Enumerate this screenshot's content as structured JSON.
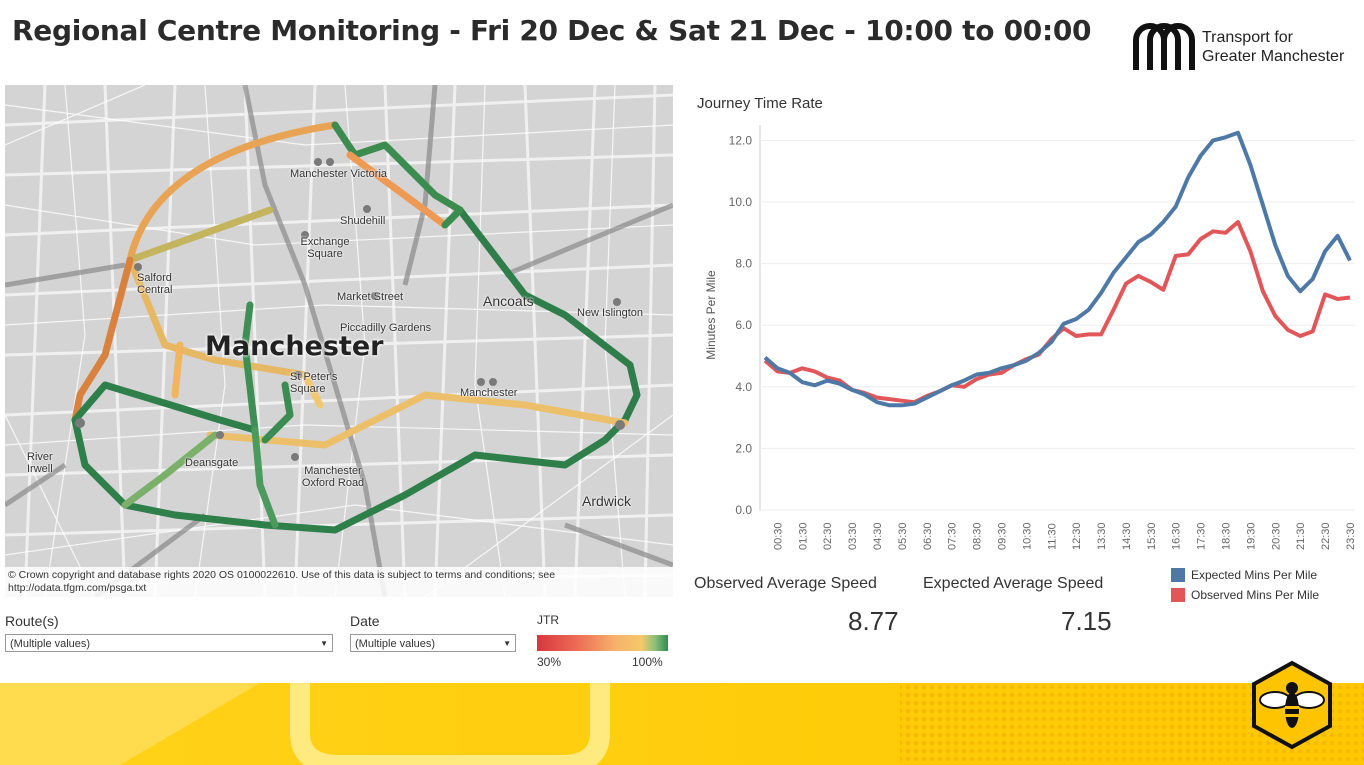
{
  "header": {
    "title": "Regional Centre Monitoring - Fri 20 Dec & Sat 21 Dec - 10:00 to 00:00"
  },
  "logo": {
    "line1": "Transport for",
    "line2": "Greater Manchester"
  },
  "map": {
    "city_label": "Manchester",
    "places": [
      {
        "id": "victoria",
        "text": "Manchester Victoria"
      },
      {
        "id": "shudehill",
        "text": "Shudehill"
      },
      {
        "id": "exchange",
        "text": "Exchange Square"
      },
      {
        "id": "salford",
        "text": "Salford Central"
      },
      {
        "id": "market",
        "text": "Market Street"
      },
      {
        "id": "piccadilly-gardens",
        "text": "Piccadilly Gardens"
      },
      {
        "id": "ancoats",
        "text": "Ancoats"
      },
      {
        "id": "new-islington",
        "text": "New Islington"
      },
      {
        "id": "st-peters",
        "text": "St Peter's Square"
      },
      {
        "id": "deansgate",
        "text": "Deansgate"
      },
      {
        "id": "oxford-road",
        "text": "Manchester Oxford Road"
      },
      {
        "id": "manchester-pic",
        "text": "Manchester"
      },
      {
        "id": "ardwick",
        "text": "Ardwick"
      },
      {
        "id": "river-irwell",
        "text": "River Irwell"
      }
    ],
    "copyright_line1": "© Crown copyright and database rights 2020 OS 0100022610. Use of this data is subject to terms and conditions; see",
    "copyright_line2": "http://odata.tfgm.com/psga.txt"
  },
  "filters": {
    "route_label": "Route(s)",
    "route_value": "(Multiple values)",
    "date_label": "Date",
    "date_value": "(Multiple values)"
  },
  "jtr": {
    "label": "JTR",
    "min": "30%",
    "max": "100%"
  },
  "chart_data": {
    "type": "line",
    "title": "Journey Time Rate",
    "ylabel": "Minutes Per Mile",
    "xlabel": "",
    "ylim": [
      0,
      12.5
    ],
    "yticks": [
      "0.0",
      "2.0",
      "4.0",
      "6.0",
      "8.0",
      "10.0",
      "12.0"
    ],
    "x": [
      "00:00",
      "00:30",
      "01:00",
      "01:30",
      "02:00",
      "02:30",
      "03:00",
      "03:30",
      "04:00",
      "04:30",
      "05:00",
      "05:30",
      "06:00",
      "06:30",
      "07:00",
      "07:30",
      "08:00",
      "08:30",
      "09:00",
      "09:30",
      "10:00",
      "10:30",
      "11:00",
      "11:30",
      "12:00",
      "12:30",
      "13:00",
      "13:30",
      "14:00",
      "14:30",
      "15:00",
      "15:30",
      "16:00",
      "16:30",
      "17:00",
      "17:30",
      "18:00",
      "18:30",
      "19:00",
      "19:30",
      "20:00",
      "20:30",
      "21:00",
      "21:30",
      "22:00",
      "22:30",
      "23:00",
      "23:30"
    ],
    "xtick_labels": [
      "00:30",
      "01:30",
      "02:30",
      "03:30",
      "04:30",
      "05:30",
      "06:30",
      "07:30",
      "08:30",
      "09:30",
      "10:30",
      "11:30",
      "12:30",
      "13:30",
      "14:30",
      "15:30",
      "16:30",
      "17:30",
      "18:30",
      "19:30",
      "20:30",
      "21:30",
      "22:30",
      "23:30"
    ],
    "series": [
      {
        "name": "Expected Mins Per Mile",
        "color": "#4e79a7",
        "values": [
          4.95,
          4.6,
          4.45,
          4.15,
          4.05,
          4.2,
          4.1,
          3.9,
          3.75,
          3.5,
          3.4,
          3.4,
          3.45,
          3.65,
          3.85,
          4.05,
          4.2,
          4.4,
          4.45,
          4.6,
          4.7,
          4.85,
          5.1,
          5.45,
          6.05,
          6.2,
          6.5,
          7.05,
          7.7,
          8.2,
          8.7,
          8.95,
          9.35,
          9.85,
          10.8,
          11.5,
          12.0,
          12.1,
          12.25,
          11.2,
          9.9,
          8.6,
          7.6,
          7.1,
          7.5,
          8.4,
          8.9,
          8.1
        ]
      },
      {
        "name": "Observed Mins Per Mile",
        "color": "#e15759",
        "values": [
          4.85,
          4.5,
          4.45,
          4.6,
          4.5,
          4.3,
          4.2,
          3.9,
          3.8,
          3.65,
          3.6,
          3.55,
          3.5,
          3.7,
          3.85,
          4.05,
          4.0,
          4.25,
          4.4,
          4.45,
          4.7,
          4.9,
          5.05,
          5.55,
          5.9,
          5.65,
          5.7,
          5.7,
          6.5,
          7.35,
          7.6,
          7.4,
          7.15,
          8.25,
          8.3,
          8.8,
          9.05,
          9.0,
          9.35,
          8.4,
          7.1,
          6.3,
          5.85,
          5.65,
          5.8,
          7.0,
          6.85,
          6.9
        ]
      }
    ]
  },
  "kpis": {
    "observed_label": "Observed Average Speed",
    "observed_value": "8.77",
    "expected_label": "Expected Average Speed",
    "expected_value": "7.15"
  },
  "colors": {
    "expected": "#4e79a7",
    "observed": "#e15759",
    "banner": "#ffd100"
  }
}
